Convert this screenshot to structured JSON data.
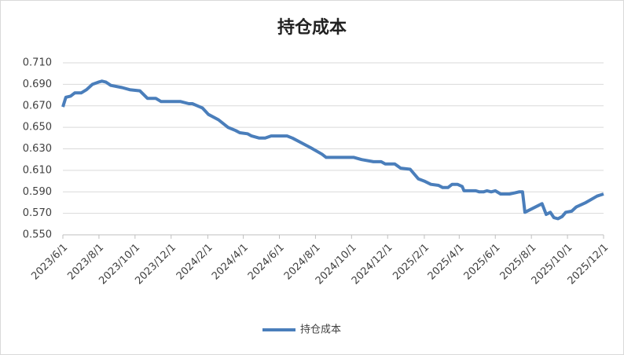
{
  "chart_data": {
    "type": "line",
    "title": "持仓成本",
    "x": [
      "2023/6/1",
      "2023/6/6",
      "2023/6/14",
      "2023/6/21",
      "2023/7/2",
      "2023/7/11",
      "2023/7/21",
      "2023/7/31",
      "2023/8/6",
      "2023/8/13",
      "2023/8/21",
      "2023/9/9",
      "2023/9/22",
      "2023/10/9",
      "2023/10/22",
      "2023/11/5",
      "2023/11/14",
      "2023/12/17",
      "2023/12/31",
      "2024/1/6",
      "2024/1/23",
      "2024/2/2",
      "2024/2/19",
      "2024/3/6",
      "2024/3/19",
      "2024/3/26",
      "2024/4/8",
      "2024/4/15",
      "2024/4/28",
      "2024/5/8",
      "2024/5/18",
      "2024/6/14",
      "2024/6/23",
      "2024/7/24",
      "2024/8/12",
      "2024/8/19",
      "2024/10/5",
      "2024/10/18",
      "2024/11/7",
      "2024/11/20",
      "2024/11/27",
      "2024/12/13",
      "2024/12/23",
      "2025/1/8",
      "2025/1/22",
      "2025/2/1",
      "2025/2/12",
      "2025/2/25",
      "2025/3/4",
      "2025/3/13",
      "2025/3/20",
      "2025/3/29",
      "2025/4/6",
      "2025/4/9",
      "2025/4/29",
      "2025/5/5",
      "2025/5/12",
      "2025/5/18",
      "2025/5/25",
      "2025/6/1",
      "2025/6/10",
      "2025/6/25",
      "2025/7/4",
      "2025/7/11",
      "2025/7/17",
      "2025/7/21",
      "2025/8/19",
      "2025/8/26",
      "2025/9/2",
      "2025/9/8",
      "2025/9/15",
      "2025/9/22",
      "2025/9/28",
      "2025/10/8",
      "2025/10/16",
      "2025/11/1",
      "2025/11/20",
      "2025/12/1"
    ],
    "series": [
      {
        "name": "持仓成本",
        "color": "#4a7ebb",
        "values": [
          0.669,
          0.678,
          0.679,
          0.682,
          0.682,
          0.685,
          0.69,
          0.692,
          0.693,
          0.692,
          0.689,
          0.687,
          0.685,
          0.684,
          0.677,
          0.677,
          0.674,
          0.674,
          0.672,
          0.672,
          0.668,
          0.662,
          0.657,
          0.65,
          0.647,
          0.645,
          0.644,
          0.642,
          0.64,
          0.64,
          0.642,
          0.642,
          0.64,
          0.631,
          0.625,
          0.622,
          0.622,
          0.62,
          0.618,
          0.618,
          0.616,
          0.616,
          0.612,
          0.611,
          0.602,
          0.6,
          0.597,
          0.596,
          0.594,
          0.594,
          0.597,
          0.597,
          0.595,
          0.591,
          0.591,
          0.59,
          0.59,
          0.591,
          0.59,
          0.591,
          0.588,
          0.588,
          0.589,
          0.59,
          0.59,
          0.571,
          0.579,
          0.569,
          0.571,
          0.566,
          0.565,
          0.567,
          0.571,
          0.572,
          0.576,
          0.58,
          0.586,
          0.588
        ]
      }
    ],
    "xlim": [
      "2023/6/1",
      "2025/12/1"
    ],
    "xticks": [
      "2023/6/1",
      "2023/8/1",
      "2023/10/1",
      "2023/12/1",
      "2024/2/1",
      "2024/4/1",
      "2024/6/1",
      "2024/8/1",
      "2024/10/1",
      "2024/12/1",
      "2025/2/1",
      "2025/4/1",
      "2025/6/1",
      "2025/8/1",
      "2025/10/1",
      "2025/12/1"
    ],
    "ylim": [
      0.55,
      0.71
    ],
    "yticks": [
      {
        "value": 0.55,
        "label": "0.550"
      },
      {
        "value": 0.57,
        "label": "0.570"
      },
      {
        "value": 0.59,
        "label": "0.590"
      },
      {
        "value": 0.61,
        "label": "0.610"
      },
      {
        "value": 0.63,
        "label": "0.630"
      },
      {
        "value": 0.65,
        "label": "0.650"
      },
      {
        "value": 0.67,
        "label": "0.670"
      },
      {
        "value": 0.69,
        "label": "0.690"
      },
      {
        "value": 0.71,
        "label": "0.710"
      }
    ],
    "grid": true,
    "legend": "bottom"
  }
}
